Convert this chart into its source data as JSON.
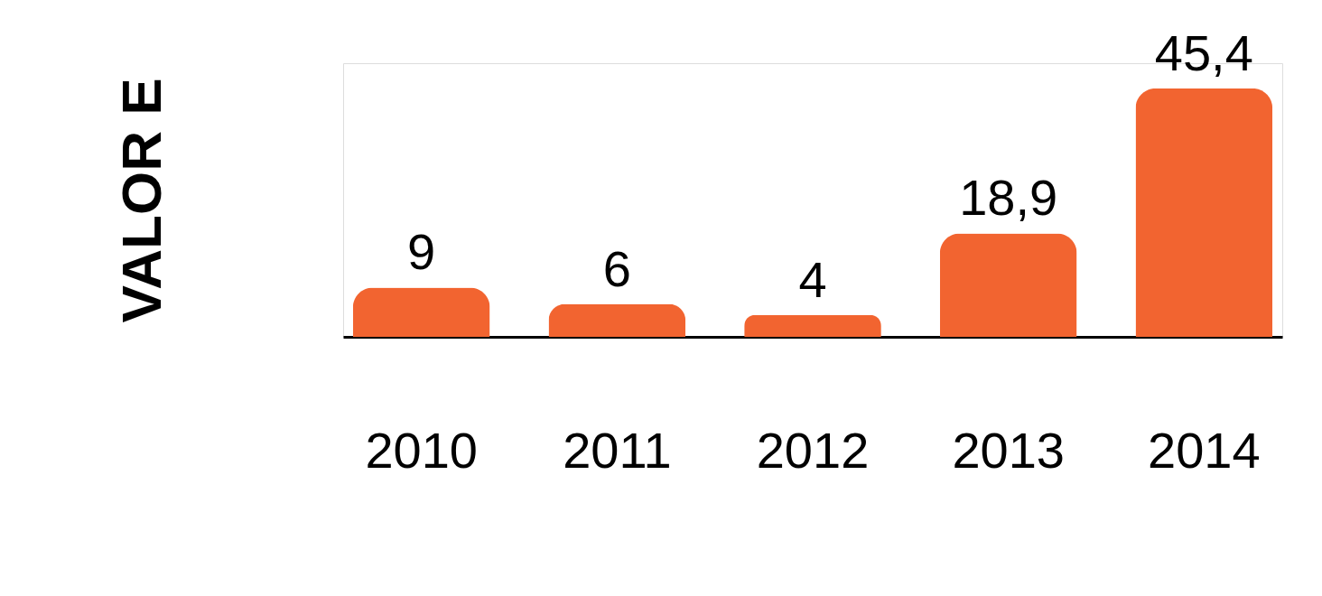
{
  "chart_data": {
    "type": "bar",
    "ylabel": "VALOR E",
    "categories": [
      "2010",
      "2011",
      "2012",
      "2013",
      "2014"
    ],
    "values": [
      9,
      6,
      4,
      18.9,
      45.4
    ],
    "value_labels": [
      "9",
      "6",
      "4",
      "18,9",
      "45,4"
    ],
    "color": "#f26430",
    "grid": false
  }
}
